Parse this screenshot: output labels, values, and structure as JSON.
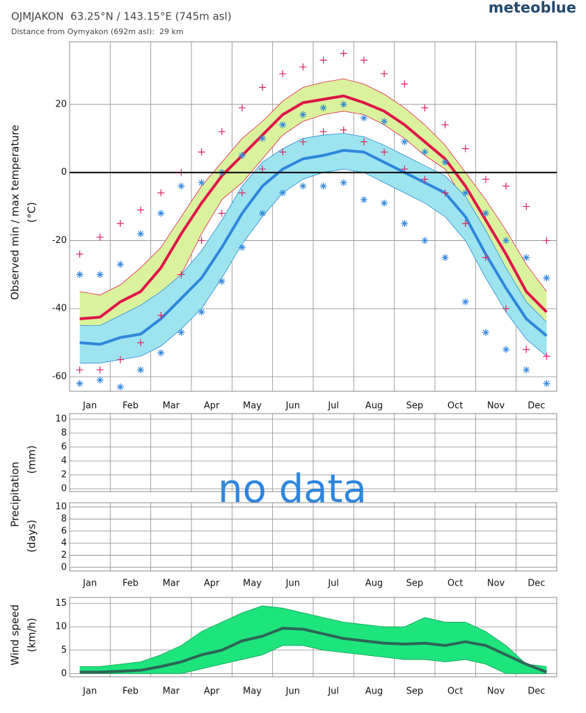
{
  "header": {
    "title": "OJMJAKON  63.25°N / 143.15°E (745m asl)",
    "subtitle": "Distance from Oymyakon (692m asl):  29 km",
    "brand": "meteoblue"
  },
  "chart_data": [
    {
      "type": "line",
      "ylabel": [
        "Observed min / max temperature",
        "(°C)"
      ],
      "categories": [
        "Jan",
        "Feb",
        "Mar",
        "Apr",
        "May",
        "Jun",
        "Jul",
        "Aug",
        "Sep",
        "Oct",
        "Nov",
        "Dec"
      ],
      "xlim": [
        0,
        12
      ],
      "ylim": [
        -64.3,
        38.4
      ],
      "yticks": [
        20,
        0,
        -20,
        -40,
        -60
      ],
      "grid": true,
      "zero_line": true,
      "x": [
        0.25,
        0.75,
        1.25,
        1.75,
        2.25,
        2.75,
        3.25,
        3.75,
        4.25,
        4.75,
        5.25,
        5.75,
        6.25,
        6.75,
        7.25,
        7.75,
        8.25,
        8.75,
        9.25,
        9.75,
        10.25,
        10.75,
        11.25,
        11.75
      ],
      "bands": [
        {
          "color": "#daf29c",
          "edge": "#e0204a",
          "upper": [
            -35,
            -36,
            -33,
            -28,
            -22,
            -13,
            -4,
            3,
            10,
            15,
            21,
            25,
            26.5,
            27.5,
            26,
            23,
            19,
            14,
            8,
            0,
            -8,
            -17,
            -27,
            -35
          ],
          "lower": [
            -46,
            -46,
            -44,
            -42,
            -38,
            -30,
            -18,
            -8,
            -3,
            4,
            11,
            15,
            17,
            18,
            17,
            14,
            10,
            5,
            1,
            -9,
            -20,
            -30,
            -40,
            -45
          ]
        },
        {
          "color": "#9ee4ef",
          "edge": "#2a86d8",
          "upper": [
            -45,
            -45,
            -42,
            -39,
            -35,
            -30,
            -23,
            -14,
            -4,
            3,
            7,
            10,
            11,
            11.5,
            10.5,
            8,
            5,
            2,
            -1,
            -7,
            -17,
            -28,
            -38,
            -44
          ],
          "lower": [
            -56,
            -56,
            -55,
            -54,
            -51,
            -46,
            -40,
            -31,
            -21,
            -13,
            -6,
            -2,
            0,
            1,
            0,
            -3,
            -6,
            -9,
            -13,
            -20,
            -31,
            -41,
            -49,
            -54
          ]
        }
      ],
      "series": [
        {
          "color": "#e0144a",
          "marker": "line",
          "values": [
            -43,
            -42.5,
            -38,
            -35,
            -28,
            -18,
            -9,
            -1,
            5,
            11,
            17,
            20.5,
            21.5,
            22.5,
            20.5,
            18,
            14,
            9,
            4,
            -4,
            -14,
            -24,
            -35,
            -41
          ]
        },
        {
          "color": "#2f86dc",
          "marker": "line",
          "values": [
            -50,
            -50.5,
            -48.5,
            -47.5,
            -43,
            -37,
            -31,
            -22,
            -12,
            -4,
            1,
            4,
            5,
            6.5,
            6,
            3,
            0,
            -3,
            -6,
            -13,
            -24,
            -34,
            -43,
            -48
          ]
        },
        {
          "color": "#e0205a",
          "marker": "plus",
          "values": [
            -24,
            -19,
            -15,
            -11,
            -6,
            0,
            6,
            12,
            19,
            25,
            29,
            31,
            33,
            35,
            33,
            29,
            26,
            19,
            14,
            7,
            -2,
            -4,
            -10,
            -20
          ]
        },
        {
          "color": "#e0205a",
          "marker": "plus",
          "values": [
            -58,
            -58,
            -55,
            -50,
            -42,
            -30,
            -20,
            -12,
            -6,
            1,
            6,
            9,
            12,
            12.5,
            9,
            6,
            1,
            -2,
            -6,
            -15,
            -25,
            -40,
            -52,
            -54
          ]
        },
        {
          "color": "#2f86dc",
          "marker": "star",
          "values": [
            -30,
            -30,
            -27,
            -18,
            -12,
            -4,
            -3,
            0,
            5,
            10,
            14,
            17,
            19,
            20,
            16,
            15,
            9,
            6,
            3,
            -6,
            -12,
            -20,
            -25,
            -31
          ]
        },
        {
          "color": "#2f86dc",
          "marker": "star",
          "values": [
            -62,
            -61,
            -63,
            -58,
            -53,
            -47,
            -41,
            -32,
            -22,
            -12,
            -6,
            -4,
            -4,
            -3,
            -8,
            -9,
            -15,
            -20,
            -25,
            -38,
            -47,
            -52,
            -58,
            -62
          ]
        }
      ]
    },
    {
      "type": "bar",
      "ylabel": [
        "Precipitation",
        "(mm)"
      ],
      "annotation": "no data",
      "xlim": [
        0,
        12
      ],
      "ylim": [
        -0.4,
        10.8
      ],
      "yticks": [
        10,
        8,
        6,
        4,
        2,
        0
      ],
      "grid": true
    },
    {
      "type": "bar",
      "ylabel": [
        "(days)"
      ],
      "categories": [
        "Jan",
        "Feb",
        "Mar",
        "Apr",
        "May",
        "Jun",
        "Jul",
        "Aug",
        "Sep",
        "Oct",
        "Nov",
        "Dec"
      ],
      "xlim": [
        0,
        12
      ],
      "ylim": [
        -0.6,
        10.7
      ],
      "yticks": [
        10,
        8,
        6,
        4,
        2,
        0
      ],
      "grid": true
    },
    {
      "type": "line",
      "ylabel": [
        "Wind speed",
        "(km/h)"
      ],
      "categories": [
        "Jan",
        "Feb",
        "Mar",
        "Apr",
        "May",
        "Jun",
        "Jul",
        "Aug",
        "Sep",
        "Oct",
        "Nov",
        "Dec"
      ],
      "xlim": [
        0,
        12
      ],
      "ylim": [
        -0.7,
        16.3
      ],
      "yticks": [
        15,
        10,
        5,
        0
      ],
      "grid": true,
      "x": [
        0.25,
        0.75,
        1.25,
        1.75,
        2.25,
        2.75,
        3.25,
        3.75,
        4.25,
        4.75,
        5.25,
        5.75,
        6.25,
        6.75,
        7.25,
        7.75,
        8.25,
        8.75,
        9.25,
        9.75,
        10.25,
        10.75,
        11.25,
        11.75
      ],
      "bands": [
        {
          "color": "#1ee47c",
          "edge": "#0b9c50",
          "upper": [
            1.5,
            1.5,
            2,
            2.5,
            4,
            6,
            9,
            11,
            13,
            14.5,
            14,
            13,
            12,
            11,
            10.5,
            10,
            10,
            12,
            11,
            11,
            9,
            6,
            2,
            1.5
          ],
          "lower": [
            0,
            0,
            0,
            0,
            0,
            0,
            1,
            2,
            3,
            4,
            6,
            6,
            5,
            4.5,
            4,
            3.5,
            3,
            3,
            2.5,
            3,
            2,
            0,
            0,
            0
          ]
        }
      ],
      "series": [
        {
          "color": "#2c6656",
          "marker": "line",
          "values": [
            0.3,
            0.3,
            0.5,
            0.7,
            1.5,
            2.5,
            4,
            5,
            7,
            8,
            9.7,
            9.5,
            8.5,
            7.5,
            7,
            6.5,
            6.3,
            6.5,
            6,
            6.8,
            6,
            4,
            2,
            0.3
          ]
        }
      ]
    }
  ]
}
